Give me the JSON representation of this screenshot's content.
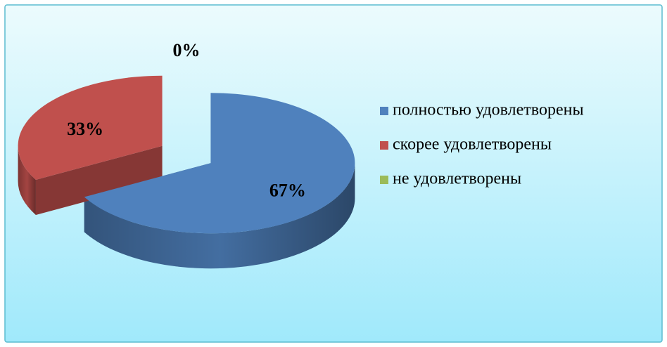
{
  "chart_data": {
    "type": "pie",
    "categories": [
      "полностью удовлетворены",
      "скорее удовлетворены",
      "не удовлетворены"
    ],
    "values": [
      67,
      33,
      0
    ],
    "value_labels": [
      "67%",
      "33%",
      "0%"
    ],
    "colors": [
      "#4f81bd",
      "#c0504d",
      "#9bbb59"
    ],
    "legend": "right"
  }
}
